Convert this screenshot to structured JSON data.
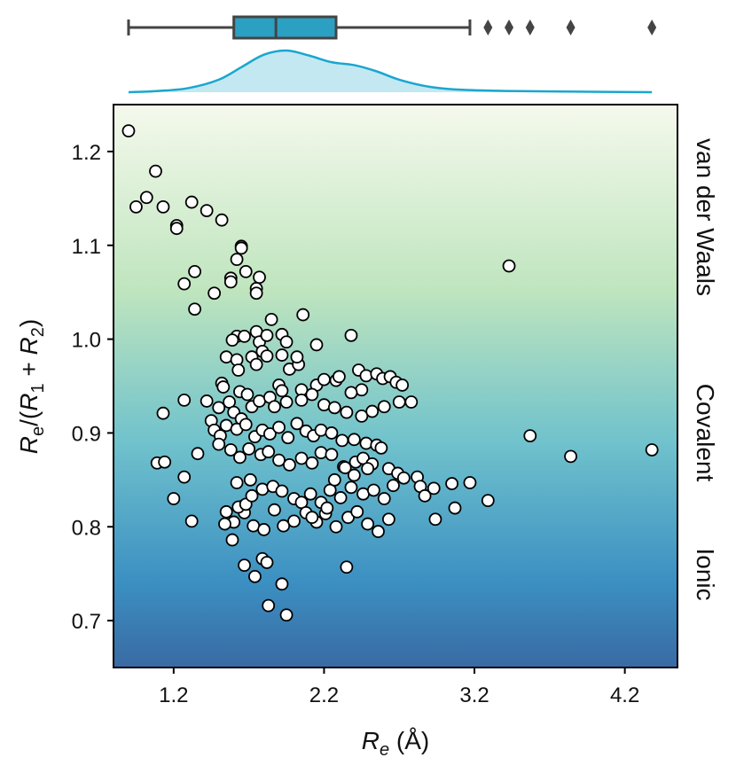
{
  "chart_data": {
    "type": "scatter",
    "xlabel_main": "R",
    "xlabel_sub": "e",
    "xlabel_unit": " (Å)",
    "ylabel": "Re/(R1 + R2)",
    "ylabel_parts": [
      "R",
      "e",
      "/(",
      "R",
      "1",
      " + ",
      "R",
      "2",
      ")"
    ],
    "xlim": [
      0.8,
      4.55
    ],
    "ylim": [
      0.65,
      1.25
    ],
    "xticks": [
      1.2,
      2.2,
      3.2,
      4.2
    ],
    "xtick_labels": [
      "1.2",
      "2.2",
      "3.2",
      "4.2"
    ],
    "yticks": [
      0.7,
      0.8,
      0.9,
      1.0,
      1.1,
      1.2
    ],
    "ytick_labels": [
      "0.7",
      "0.8",
      "0.9",
      "1.0",
      "1.1",
      "1.2"
    ],
    "region_labels": [
      "van der Waals",
      "Covalent",
      "Ionic"
    ],
    "colors": {
      "gradient_top": "#f5f9ec",
      "gradient_mid1": "#bfe5be",
      "gradient_mid2": "#70c2cc",
      "gradient_mid3": "#3b8fc2",
      "gradient_bottom": "#3a6aa3",
      "box_fill": "#2ba0c2",
      "box_edge": "#444444",
      "kde_line": "#1aa6cf",
      "kde_fill": "#c3e8f2",
      "point_fill": "#ffffff",
      "point_edge": "#000000"
    },
    "boxplot": {
      "whisker_low": 0.9,
      "q1": 1.6,
      "median": 1.88,
      "q3": 2.28,
      "whisker_high": 3.17,
      "outliers": [
        3.29,
        3.43,
        3.57,
        3.84,
        4.38
      ]
    },
    "kde": {
      "x": [
        0.9,
        1.1,
        1.3,
        1.5,
        1.65,
        1.8,
        1.95,
        2.1,
        2.25,
        2.4,
        2.55,
        2.7,
        2.9,
        3.1,
        3.4,
        3.8,
        4.38
      ],
      "density": [
        0.0,
        0.03,
        0.1,
        0.3,
        0.6,
        0.9,
        1.0,
        0.88,
        0.72,
        0.65,
        0.5,
        0.3,
        0.13,
        0.06,
        0.03,
        0.015,
        0.0
      ]
    },
    "points": [
      [
        0.9,
        1.222
      ],
      [
        0.95,
        1.141
      ],
      [
        1.02,
        1.151
      ],
      [
        1.08,
        1.179
      ],
      [
        1.13,
        1.141
      ],
      [
        1.22,
        1.121
      ],
      [
        1.22,
        1.118
      ],
      [
        1.32,
        1.146
      ],
      [
        1.42,
        1.137
      ],
      [
        1.52,
        1.127
      ],
      [
        1.65,
        1.099
      ],
      [
        1.65,
        1.097
      ],
      [
        1.62,
        1.085
      ],
      [
        1.68,
        1.072
      ],
      [
        1.77,
        1.066
      ],
      [
        1.58,
        1.065
      ],
      [
        1.58,
        1.061
      ],
      [
        1.75,
        1.054
      ],
      [
        1.75,
        1.049
      ],
      [
        1.47,
        1.049
      ],
      [
        1.34,
        1.072
      ],
      [
        1.27,
        1.059
      ],
      [
        1.34,
        1.032
      ],
      [
        1.85,
        1.021
      ],
      [
        2.06,
        1.026
      ],
      [
        1.75,
        1.008
      ],
      [
        1.62,
        1.003
      ],
      [
        1.67,
        1.003
      ],
      [
        1.59,
        0.999
      ],
      [
        1.77,
        0.997
      ],
      [
        1.82,
        1.004
      ],
      [
        1.92,
        1.005
      ],
      [
        2.38,
        1.004
      ],
      [
        1.95,
        0.997
      ],
      [
        2.15,
        0.994
      ],
      [
        1.79,
        0.987
      ],
      [
        1.55,
        0.981
      ],
      [
        1.62,
        0.978
      ],
      [
        1.72,
        0.981
      ],
      [
        1.82,
        0.982
      ],
      [
        1.92,
        0.983
      ],
      [
        1.75,
        0.973
      ],
      [
        1.63,
        0.967
      ],
      [
        1.97,
        0.968
      ],
      [
        2.03,
        0.973
      ],
      [
        2.02,
        0.981
      ],
      [
        1.52,
        0.953
      ],
      [
        1.53,
        0.949
      ],
      [
        1.64,
        0.944
      ],
      [
        1.69,
        0.941
      ],
      [
        1.9,
        0.951
      ],
      [
        1.92,
        0.945
      ],
      [
        2.05,
        0.946
      ],
      [
        2.15,
        0.951
      ],
      [
        2.2,
        0.957
      ],
      [
        2.28,
        0.956
      ],
      [
        2.3,
        0.96
      ],
      [
        2.43,
        0.967
      ],
      [
        2.48,
        0.961
      ],
      [
        2.55,
        0.963
      ],
      [
        2.59,
        0.958
      ],
      [
        2.64,
        0.96
      ],
      [
        2.68,
        0.954
      ],
      [
        2.72,
        0.951
      ],
      [
        2.45,
        0.946
      ],
      [
        2.38,
        0.943
      ],
      [
        1.42,
        0.934
      ],
      [
        1.5,
        0.927
      ],
      [
        1.57,
        0.933
      ],
      [
        1.6,
        0.922
      ],
      [
        1.65,
        0.915
      ],
      [
        1.72,
        0.928
      ],
      [
        1.77,
        0.934
      ],
      [
        1.84,
        0.938
      ],
      [
        1.87,
        0.928
      ],
      [
        1.95,
        0.933
      ],
      [
        2.05,
        0.935
      ],
      [
        2.12,
        0.941
      ],
      [
        2.2,
        0.93
      ],
      [
        2.27,
        0.927
      ],
      [
        2.35,
        0.922
      ],
      [
        2.45,
        0.918
      ],
      [
        2.52,
        0.923
      ],
      [
        2.6,
        0.928
      ],
      [
        2.7,
        0.933
      ],
      [
        2.78,
        0.933
      ],
      [
        1.45,
        0.913
      ],
      [
        1.47,
        0.903
      ],
      [
        1.51,
        0.897
      ],
      [
        1.55,
        0.908
      ],
      [
        1.62,
        0.904
      ],
      [
        1.68,
        0.909
      ],
      [
        1.74,
        0.896
      ],
      [
        1.79,
        0.903
      ],
      [
        1.84,
        0.899
      ],
      [
        1.9,
        0.906
      ],
      [
        1.96,
        0.895
      ],
      [
        2.02,
        0.91
      ],
      [
        2.08,
        0.902
      ],
      [
        2.13,
        0.897
      ],
      [
        2.18,
        0.903
      ],
      [
        2.25,
        0.9
      ],
      [
        2.32,
        0.892
      ],
      [
        2.4,
        0.893
      ],
      [
        2.48,
        0.889
      ],
      [
        2.55,
        0.887
      ],
      [
        1.5,
        0.888
      ],
      [
        1.58,
        0.882
      ],
      [
        1.64,
        0.874
      ],
      [
        1.7,
        0.883
      ],
      [
        1.78,
        0.877
      ],
      [
        1.83,
        0.88
      ],
      [
        1.9,
        0.871
      ],
      [
        1.97,
        0.866
      ],
      [
        2.05,
        0.873
      ],
      [
        2.12,
        0.868
      ],
      [
        2.18,
        0.879
      ],
      [
        2.25,
        0.877
      ],
      [
        2.33,
        0.864
      ],
      [
        2.41,
        0.869
      ],
      [
        2.46,
        0.873
      ],
      [
        2.52,
        0.867
      ],
      [
        2.58,
        0.884
      ],
      [
        2.63,
        0.862
      ],
      [
        2.69,
        0.857
      ],
      [
        2.73,
        0.852
      ],
      [
        2.82,
        0.853
      ],
      [
        2.84,
        0.843
      ],
      [
        2.87,
        0.833
      ],
      [
        2.93,
        0.841
      ],
      [
        3.05,
        0.846
      ],
      [
        3.17,
        0.847
      ],
      [
        3.07,
        0.82
      ],
      [
        3.29,
        0.828
      ],
      [
        2.94,
        0.808
      ],
      [
        3.43,
        1.078
      ],
      [
        3.57,
        0.897
      ],
      [
        3.84,
        0.875
      ],
      [
        4.38,
        0.882
      ],
      [
        1.09,
        0.868
      ],
      [
        1.14,
        0.869
      ],
      [
        1.13,
        0.921
      ],
      [
        1.27,
        0.935
      ],
      [
        1.27,
        0.853
      ],
      [
        1.36,
        0.878
      ],
      [
        1.2,
        0.83
      ],
      [
        1.32,
        0.806
      ],
      [
        1.62,
        0.847
      ],
      [
        1.71,
        0.85
      ],
      [
        1.79,
        0.84
      ],
      [
        1.86,
        0.843
      ],
      [
        1.92,
        0.838
      ],
      [
        2.0,
        0.83
      ],
      [
        2.05,
        0.826
      ],
      [
        2.11,
        0.835
      ],
      [
        2.18,
        0.826
      ],
      [
        2.24,
        0.839
      ],
      [
        2.31,
        0.831
      ],
      [
        2.38,
        0.842
      ],
      [
        2.46,
        0.835
      ],
      [
        2.53,
        0.839
      ],
      [
        2.6,
        0.83
      ],
      [
        2.66,
        0.844
      ],
      [
        1.55,
        0.816
      ],
      [
        1.6,
        0.805
      ],
      [
        1.66,
        0.822
      ],
      [
        1.67,
        0.815
      ],
      [
        1.73,
        0.801
      ],
      [
        1.8,
        0.797
      ],
      [
        1.87,
        0.818
      ],
      [
        1.93,
        0.801
      ],
      [
        2.0,
        0.806
      ],
      [
        2.08,
        0.815
      ],
      [
        2.15,
        0.805
      ],
      [
        2.21,
        0.814
      ],
      [
        2.28,
        0.8
      ],
      [
        2.36,
        0.81
      ],
      [
        2.42,
        0.816
      ],
      [
        2.49,
        0.803
      ],
      [
        2.56,
        0.795
      ],
      [
        2.63,
        0.808
      ],
      [
        1.59,
        0.786
      ],
      [
        1.67,
        0.759
      ],
      [
        1.74,
        0.747
      ],
      [
        1.79,
        0.766
      ],
      [
        1.82,
        0.762
      ],
      [
        1.83,
        0.716
      ],
      [
        1.92,
        0.739
      ],
      [
        1.95,
        0.706
      ],
      [
        2.35,
        0.757
      ],
      [
        2.12,
        0.81
      ],
      [
        2.22,
        0.82
      ],
      [
        1.54,
        0.803
      ],
      [
        1.63,
        0.821
      ],
      [
        1.68,
        0.824
      ],
      [
        1.72,
        0.833
      ],
      [
        2.27,
        0.85
      ],
      [
        2.34,
        0.863
      ],
      [
        2.4,
        0.855
      ],
      [
        2.49,
        0.862
      ]
    ]
  }
}
